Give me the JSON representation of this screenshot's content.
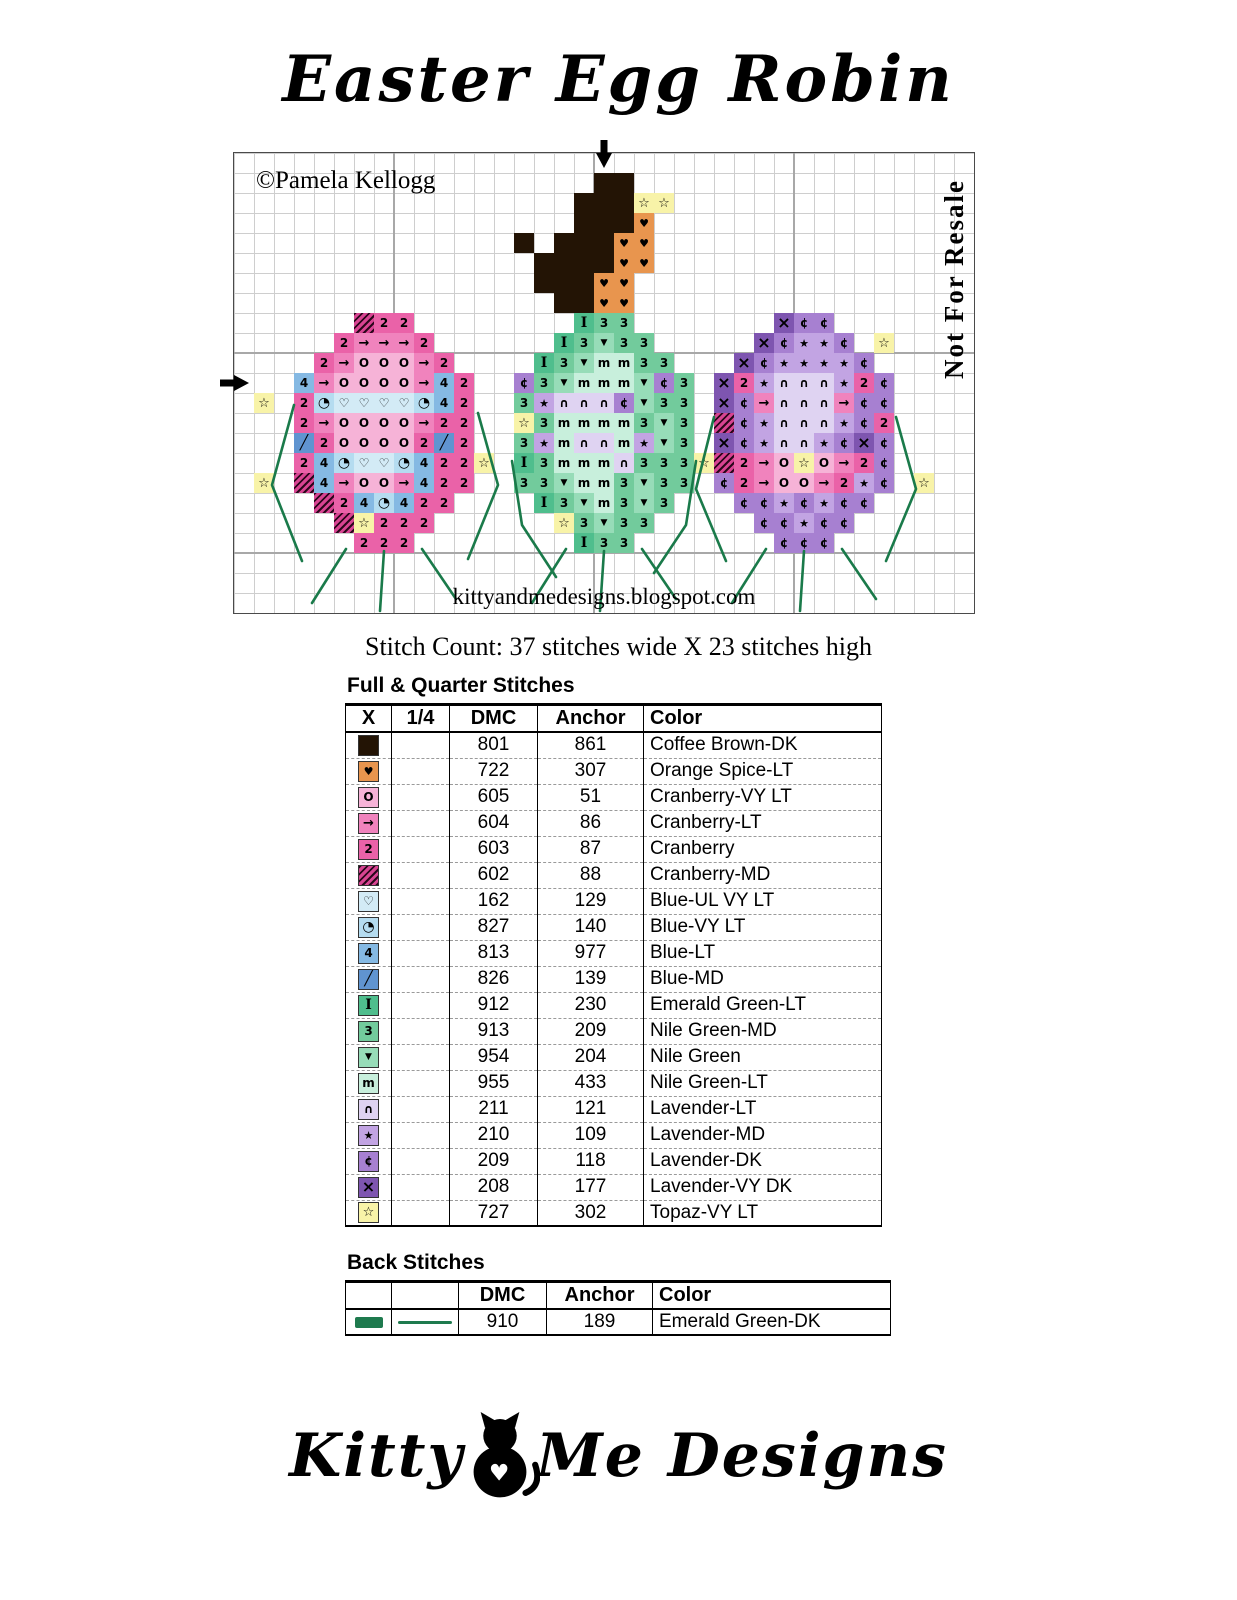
{
  "header": {
    "title": "Easter Egg Robin"
  },
  "chart": {
    "copyright": "©Pamela Kellogg",
    "not_for_resale": "Not For Resale",
    "website": "kittyandmedesigns.blogspot.com",
    "cols": 37,
    "rows": 23,
    "backstitch_color": "#1a7a4a",
    "palette": {
      "B": {
        "name": "Coffee Brown-DK",
        "bg": "#231405"
      },
      "H": {
        "name": "Orange Spice-LT",
        "bg": "#e8954e",
        "symbol": "♥",
        "fs": 11
      },
      "O": {
        "name": "Cranberry-VY LT",
        "bg": "#f6b3d7",
        "symbol": "O",
        "fs": 12
      },
      "A": {
        "name": "Cranberry-LT",
        "bg": "#f083bd",
        "symbol": "→",
        "fs": 13
      },
      "2": {
        "name": "Cranberry",
        "bg": "#ea62a8",
        "symbol": "2",
        "fs": 12
      },
      "M": {
        "name": "Cranberry-MD",
        "bg": "#d84492",
        "hatch": true
      },
      "h": {
        "name": "Blue-UL VY LT",
        "bg": "#d3ebf6",
        "symbol": "♡",
        "fs": 12
      },
      "q": {
        "name": "Blue-VY LT",
        "bg": "#b5dcf0",
        "symbol": "◔",
        "fs": 14
      },
      "4": {
        "name": "Blue-LT",
        "bg": "#85b9e3",
        "symbol": "4",
        "fs": 12
      },
      "s": {
        "name": "Blue-MD",
        "bg": "#6094d0",
        "symbol": "╱",
        "fs": 14
      },
      "X": {
        "name": "Emerald Green-LT",
        "bg": "#4fbe8d",
        "symbol": "I",
        "fs": 14,
        "serif": true
      },
      "3": {
        "name": "Nile Green-MD",
        "bg": "#72cb9c",
        "symbol": "3",
        "fs": 12
      },
      "V": {
        "name": "Nile Green",
        "bg": "#97dcb8",
        "symbol": "▼",
        "fs": 9
      },
      "m": {
        "name": "Nile Green-LT",
        "bg": "#c8efdc",
        "symbol": "m",
        "fs": 12
      },
      "n": {
        "name": "Lavender-LT",
        "bg": "#dfd3f2",
        "symbol": "∩",
        "fs": 12
      },
      "*": {
        "name": "Lavender-MD",
        "bg": "#c2a4e3",
        "symbol": "★",
        "fs": 11
      },
      "c": {
        "name": "Lavender-DK",
        "bg": "#a780d1",
        "symbol": "¢",
        "fs": 12
      },
      "x": {
        "name": "Lavender-VY DK",
        "bg": "#7e55b0",
        "symbol": "×",
        "fs": 16
      },
      "t": {
        "name": "Topaz-VY LT",
        "bg": "#f8f3a8",
        "symbol": "☆",
        "fs": 13
      }
    },
    "grid_runs": [
      {
        "row": 2,
        "runs": [
          [
            19,
            "BB"
          ]
        ]
      },
      {
        "row": 3,
        "runs": [
          [
            18,
            "BBB"
          ],
          [
            21,
            "tt"
          ]
        ]
      },
      {
        "row": 4,
        "runs": [
          [
            18,
            "BBBH"
          ]
        ]
      },
      {
        "row": 5,
        "runs": [
          [
            15,
            "B"
          ],
          [
            17,
            "BBBHH"
          ]
        ]
      },
      {
        "row": 6,
        "runs": [
          [
            16,
            "BBBBHH"
          ]
        ]
      },
      {
        "row": 7,
        "runs": [
          [
            16,
            "BBBHH"
          ]
        ]
      },
      {
        "row": 8,
        "runs": [
          [
            17,
            "BBHH"
          ]
        ]
      },
      {
        "row": 9,
        "runs": [
          [
            7,
            "M22"
          ],
          [
            18,
            "X33"
          ],
          [
            28,
            "xcc"
          ]
        ]
      },
      {
        "row": 10,
        "runs": [
          [
            6,
            "2AAA2"
          ],
          [
            17,
            "X3V33"
          ],
          [
            27,
            "xc**c"
          ],
          [
            33,
            "t"
          ]
        ]
      },
      {
        "row": 11,
        "runs": [
          [
            5,
            "2AOOOA2"
          ],
          [
            16,
            "X3Vmm33"
          ],
          [
            26,
            "xc****c"
          ]
        ]
      },
      {
        "row": 12,
        "runs": [
          [
            4,
            "4AOOOOA42"
          ],
          [
            15,
            "c3VmmmVc3"
          ],
          [
            25,
            "x2*nnn*2c"
          ]
        ]
      },
      {
        "row": 13,
        "runs": [
          [
            2,
            "t"
          ],
          [
            4,
            "2qhhhhq42"
          ],
          [
            15,
            "3*nnncV33"
          ],
          [
            25,
            "xcAnnnAcc"
          ]
        ]
      },
      {
        "row": 14,
        "runs": [
          [
            4,
            "2AOOOOA22"
          ],
          [
            15,
            "t3mmmm3V3"
          ],
          [
            25,
            "Mc*nnn*c2"
          ]
        ]
      },
      {
        "row": 15,
        "runs": [
          [
            4,
            "s2OOOO2s2"
          ],
          [
            15,
            "3*mnnm*V3"
          ],
          [
            25,
            "xc*nn*cxc"
          ]
        ]
      },
      {
        "row": 16,
        "runs": [
          [
            4,
            "24qhhq422"
          ],
          [
            13,
            "t"
          ],
          [
            15,
            "X3mmmn333"
          ],
          [
            24,
            "t"
          ],
          [
            25,
            "M2AOtOA2c"
          ]
        ]
      },
      {
        "row": 17,
        "runs": [
          [
            2,
            "t"
          ],
          [
            4,
            "M4AOOA422"
          ],
          [
            15,
            "33Vmm3V33"
          ],
          [
            25,
            "c2AOOA2*c"
          ],
          [
            35,
            "t"
          ]
        ]
      },
      {
        "row": 18,
        "runs": [
          [
            5,
            "M24q422"
          ],
          [
            16,
            "X3Vm3V3"
          ],
          [
            26,
            "cc*c*cc"
          ]
        ]
      },
      {
        "row": 19,
        "runs": [
          [
            6,
            "Mt222"
          ],
          [
            17,
            "t3V33"
          ],
          [
            27,
            "cc*cc"
          ]
        ]
      },
      {
        "row": 20,
        "runs": [
          [
            7,
            "222"
          ],
          [
            18,
            "X33"
          ],
          [
            28,
            "ccc"
          ]
        ]
      }
    ],
    "backstitches": [
      [
        [
          3.0,
          12.6
        ],
        [
          1.9,
          16.6
        ],
        [
          3.4,
          20.4
        ]
      ],
      [
        [
          12.2,
          13.0
        ],
        [
          13.2,
          16.6
        ],
        [
          11.7,
          20.3
        ]
      ],
      [
        [
          5.6,
          19.8
        ],
        [
          3.9,
          22.5
        ]
      ],
      [
        [
          7.5,
          19.9
        ],
        [
          7.3,
          22.9
        ]
      ],
      [
        [
          9.4,
          19.8
        ],
        [
          11.1,
          22.3
        ]
      ],
      [
        [
          13.9,
          15.4
        ],
        [
          14.4,
          18.6
        ],
        [
          16.1,
          21.2
        ]
      ],
      [
        [
          23.1,
          15.4
        ],
        [
          22.6,
          18.6
        ],
        [
          21.0,
          21.0
        ]
      ],
      [
        [
          16.6,
          19.8
        ],
        [
          14.9,
          22.5
        ]
      ],
      [
        [
          18.5,
          19.9
        ],
        [
          18.3,
          22.9
        ]
      ],
      [
        [
          20.4,
          19.8
        ],
        [
          22.1,
          22.3
        ]
      ],
      [
        [
          24.0,
          13.2
        ],
        [
          23.1,
          16.8
        ],
        [
          24.6,
          20.4
        ]
      ],
      [
        [
          33.1,
          13.2
        ],
        [
          34.1,
          16.8
        ],
        [
          32.6,
          20.4
        ]
      ],
      [
        [
          26.6,
          19.8
        ],
        [
          24.9,
          22.5
        ]
      ],
      [
        [
          28.5,
          19.9
        ],
        [
          28.3,
          22.9
        ]
      ],
      [
        [
          30.4,
          19.8
        ],
        [
          32.1,
          22.3
        ]
      ]
    ]
  },
  "stitch_count": "Stitch Count:  37 stitches wide X 23 stitches high",
  "legend": {
    "full_quarter_title": "Full & Quarter Stitches",
    "headers": [
      "X",
      "1/4",
      "DMC",
      "Anchor",
      "Color"
    ],
    "rows": [
      {
        "code": "B",
        "dmc": "801",
        "anchor": "861",
        "name": "Coffee Brown-DK"
      },
      {
        "code": "H",
        "dmc": "722",
        "anchor": "307",
        "name": "Orange Spice-LT"
      },
      {
        "code": "O",
        "dmc": "605",
        "anchor": "51",
        "name": "Cranberry-VY LT"
      },
      {
        "code": "A",
        "dmc": "604",
        "anchor": "86",
        "name": "Cranberry-LT"
      },
      {
        "code": "2",
        "dmc": "603",
        "anchor": "87",
        "name": "Cranberry"
      },
      {
        "code": "M",
        "dmc": "602",
        "anchor": "88",
        "name": "Cranberry-MD"
      },
      {
        "code": "h",
        "dmc": "162",
        "anchor": "129",
        "name": "Blue-UL VY LT"
      },
      {
        "code": "q",
        "dmc": "827",
        "anchor": "140",
        "name": "Blue-VY LT"
      },
      {
        "code": "4",
        "dmc": "813",
        "anchor": "977",
        "name": "Blue-LT"
      },
      {
        "code": "s",
        "dmc": "826",
        "anchor": "139",
        "name": "Blue-MD"
      },
      {
        "code": "X",
        "dmc": "912",
        "anchor": "230",
        "name": "Emerald Green-LT"
      },
      {
        "code": "3",
        "dmc": "913",
        "anchor": "209",
        "name": "Nile Green-MD"
      },
      {
        "code": "V",
        "dmc": "954",
        "anchor": "204",
        "name": "Nile Green"
      },
      {
        "code": "m",
        "dmc": "955",
        "anchor": "433",
        "name": "Nile Green-LT"
      },
      {
        "code": "n",
        "dmc": "211",
        "anchor": "121",
        "name": "Lavender-LT"
      },
      {
        "code": "*",
        "dmc": "210",
        "anchor": "109",
        "name": "Lavender-MD"
      },
      {
        "code": "c",
        "dmc": "209",
        "anchor": "118",
        "name": "Lavender-DK"
      },
      {
        "code": "x",
        "dmc": "208",
        "anchor": "177",
        "name": "Lavender-VY DK"
      },
      {
        "code": "t",
        "dmc": "727",
        "anchor": "302",
        "name": "Topaz-VY LT"
      }
    ],
    "back_title": "Back Stitches",
    "back_headers": [
      "",
      "",
      "DMC",
      "Anchor",
      "Color"
    ],
    "back_rows": [
      {
        "dmc": "910",
        "anchor": "189",
        "name": "Emerald Green-DK",
        "color": "#1e7a4e"
      }
    ]
  },
  "footer": {
    "logo_left": "Kitty",
    "logo_right": "Me Designs"
  }
}
